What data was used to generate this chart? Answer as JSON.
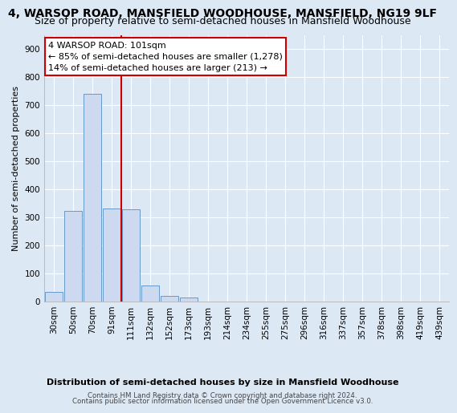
{
  "title": "4, WARSOP ROAD, MANSFIELD WOODHOUSE, MANSFIELD, NG19 9LF",
  "subtitle": "Size of property relative to semi-detached houses in Mansfield Woodhouse",
  "xlabel_bottom": "Distribution of semi-detached houses by size in Mansfield Woodhouse",
  "ylabel": "Number of semi-detached properties",
  "footer1": "Contains HM Land Registry data © Crown copyright and database right 2024.",
  "footer2": "Contains public sector information licensed under the Open Government Licence v3.0.",
  "categories": [
    "30sqm",
    "50sqm",
    "70sqm",
    "91sqm",
    "111sqm",
    "132sqm",
    "152sqm",
    "173sqm",
    "193sqm",
    "214sqm",
    "234sqm",
    "255sqm",
    "275sqm",
    "296sqm",
    "316sqm",
    "337sqm",
    "357sqm",
    "378sqm",
    "398sqm",
    "419sqm",
    "439sqm"
  ],
  "values": [
    35,
    322,
    740,
    332,
    330,
    57,
    20,
    13,
    0,
    0,
    0,
    0,
    0,
    0,
    0,
    0,
    0,
    0,
    0,
    0,
    0
  ],
  "bar_color": "#ccd9ee",
  "bar_edge_color": "#6699cc",
  "vline_color": "#cc0000",
  "annotation_title": "4 WARSOP ROAD: 101sqm",
  "annotation_line1": "← 85% of semi-detached houses are smaller (1,278)",
  "annotation_line2": "14% of semi-detached houses are larger (213) →",
  "annotation_box_facecolor": "#ffffff",
  "annotation_box_edgecolor": "#cc0000",
  "background_color": "#dde8f5",
  "plot_bg_color": "#dde8f5",
  "ylim": [
    0,
    950
  ],
  "yticks": [
    0,
    100,
    200,
    300,
    400,
    500,
    600,
    700,
    800,
    900
  ],
  "title_fontsize": 10,
  "subtitle_fontsize": 9,
  "tick_fontsize": 7.5,
  "ylabel_fontsize": 8
}
